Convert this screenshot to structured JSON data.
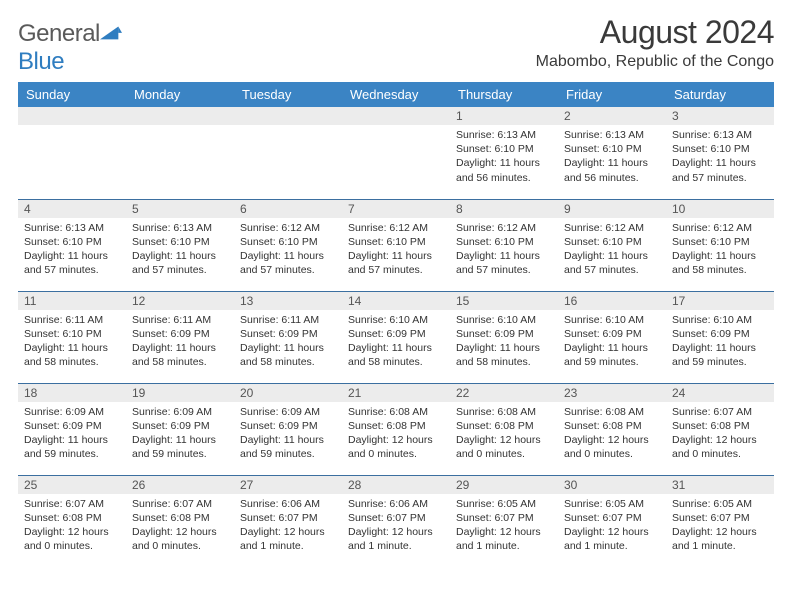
{
  "logo": {
    "word1": "General",
    "word2": "Blue"
  },
  "title": "August 2024",
  "location": "Mabombo, Republic of the Congo",
  "colors": {
    "header_bg": "#3b84c4",
    "header_text": "#ffffff",
    "daynum_bg": "#ececec",
    "row_border": "#3b6fa0",
    "logo_gray": "#5a5a5a",
    "logo_blue": "#2f7dc0"
  },
  "weekdays": [
    "Sunday",
    "Monday",
    "Tuesday",
    "Wednesday",
    "Thursday",
    "Friday",
    "Saturday"
  ],
  "weeks": [
    [
      null,
      null,
      null,
      null,
      {
        "n": "1",
        "sr": "6:13 AM",
        "ss": "6:10 PM",
        "dl": "11 hours and 56 minutes."
      },
      {
        "n": "2",
        "sr": "6:13 AM",
        "ss": "6:10 PM",
        "dl": "11 hours and 56 minutes."
      },
      {
        "n": "3",
        "sr": "6:13 AM",
        "ss": "6:10 PM",
        "dl": "11 hours and 57 minutes."
      }
    ],
    [
      {
        "n": "4",
        "sr": "6:13 AM",
        "ss": "6:10 PM",
        "dl": "11 hours and 57 minutes."
      },
      {
        "n": "5",
        "sr": "6:13 AM",
        "ss": "6:10 PM",
        "dl": "11 hours and 57 minutes."
      },
      {
        "n": "6",
        "sr": "6:12 AM",
        "ss": "6:10 PM",
        "dl": "11 hours and 57 minutes."
      },
      {
        "n": "7",
        "sr": "6:12 AM",
        "ss": "6:10 PM",
        "dl": "11 hours and 57 minutes."
      },
      {
        "n": "8",
        "sr": "6:12 AM",
        "ss": "6:10 PM",
        "dl": "11 hours and 57 minutes."
      },
      {
        "n": "9",
        "sr": "6:12 AM",
        "ss": "6:10 PM",
        "dl": "11 hours and 57 minutes."
      },
      {
        "n": "10",
        "sr": "6:12 AM",
        "ss": "6:10 PM",
        "dl": "11 hours and 58 minutes."
      }
    ],
    [
      {
        "n": "11",
        "sr": "6:11 AM",
        "ss": "6:10 PM",
        "dl": "11 hours and 58 minutes."
      },
      {
        "n": "12",
        "sr": "6:11 AM",
        "ss": "6:09 PM",
        "dl": "11 hours and 58 minutes."
      },
      {
        "n": "13",
        "sr": "6:11 AM",
        "ss": "6:09 PM",
        "dl": "11 hours and 58 minutes."
      },
      {
        "n": "14",
        "sr": "6:10 AM",
        "ss": "6:09 PM",
        "dl": "11 hours and 58 minutes."
      },
      {
        "n": "15",
        "sr": "6:10 AM",
        "ss": "6:09 PM",
        "dl": "11 hours and 58 minutes."
      },
      {
        "n": "16",
        "sr": "6:10 AM",
        "ss": "6:09 PM",
        "dl": "11 hours and 59 minutes."
      },
      {
        "n": "17",
        "sr": "6:10 AM",
        "ss": "6:09 PM",
        "dl": "11 hours and 59 minutes."
      }
    ],
    [
      {
        "n": "18",
        "sr": "6:09 AM",
        "ss": "6:09 PM",
        "dl": "11 hours and 59 minutes."
      },
      {
        "n": "19",
        "sr": "6:09 AM",
        "ss": "6:09 PM",
        "dl": "11 hours and 59 minutes."
      },
      {
        "n": "20",
        "sr": "6:09 AM",
        "ss": "6:09 PM",
        "dl": "11 hours and 59 minutes."
      },
      {
        "n": "21",
        "sr": "6:08 AM",
        "ss": "6:08 PM",
        "dl": "12 hours and 0 minutes."
      },
      {
        "n": "22",
        "sr": "6:08 AM",
        "ss": "6:08 PM",
        "dl": "12 hours and 0 minutes."
      },
      {
        "n": "23",
        "sr": "6:08 AM",
        "ss": "6:08 PM",
        "dl": "12 hours and 0 minutes."
      },
      {
        "n": "24",
        "sr": "6:07 AM",
        "ss": "6:08 PM",
        "dl": "12 hours and 0 minutes."
      }
    ],
    [
      {
        "n": "25",
        "sr": "6:07 AM",
        "ss": "6:08 PM",
        "dl": "12 hours and 0 minutes."
      },
      {
        "n": "26",
        "sr": "6:07 AM",
        "ss": "6:08 PM",
        "dl": "12 hours and 0 minutes."
      },
      {
        "n": "27",
        "sr": "6:06 AM",
        "ss": "6:07 PM",
        "dl": "12 hours and 1 minute."
      },
      {
        "n": "28",
        "sr": "6:06 AM",
        "ss": "6:07 PM",
        "dl": "12 hours and 1 minute."
      },
      {
        "n": "29",
        "sr": "6:05 AM",
        "ss": "6:07 PM",
        "dl": "12 hours and 1 minute."
      },
      {
        "n": "30",
        "sr": "6:05 AM",
        "ss": "6:07 PM",
        "dl": "12 hours and 1 minute."
      },
      {
        "n": "31",
        "sr": "6:05 AM",
        "ss": "6:07 PM",
        "dl": "12 hours and 1 minute."
      }
    ]
  ],
  "labels": {
    "sunrise": "Sunrise:",
    "sunset": "Sunset:",
    "daylight": "Daylight:"
  }
}
